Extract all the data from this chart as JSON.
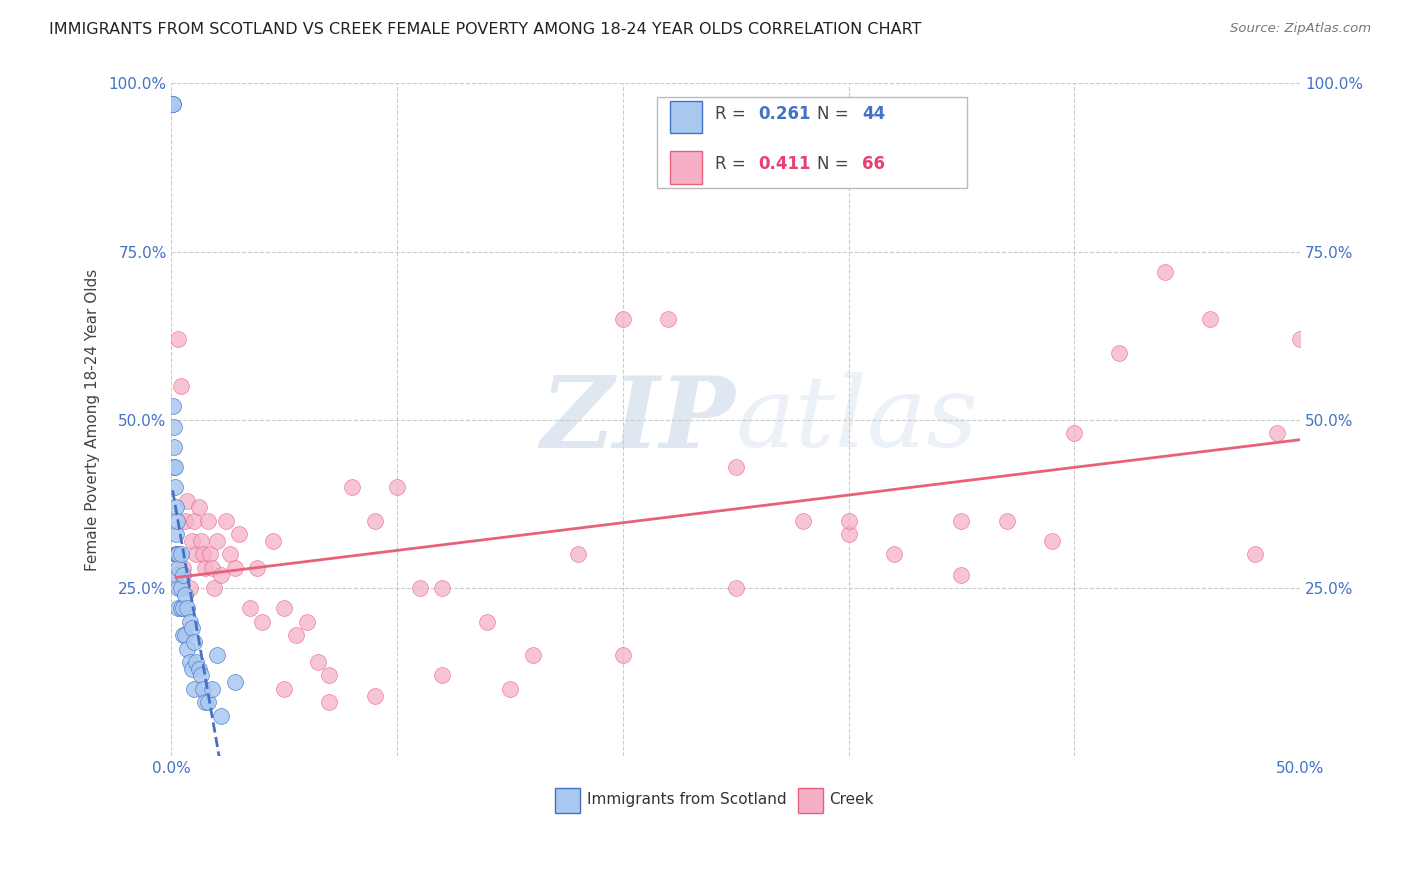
{
  "title": "IMMIGRANTS FROM SCOTLAND VS CREEK FEMALE POVERTY AMONG 18-24 YEAR OLDS CORRELATION CHART",
  "source": "Source: ZipAtlas.com",
  "ylabel": "Female Poverty Among 18-24 Year Olds",
  "xlim": [
    0.0,
    0.5
  ],
  "ylim": [
    0.0,
    1.0
  ],
  "legend1_label": "Immigrants from Scotland",
  "legend2_label": "Creek",
  "R1": "0.261",
  "N1": "44",
  "R2": "0.411",
  "N2": "66",
  "color_scotland": "#a8c8f0",
  "color_creek": "#f5b0c8",
  "color_scotland_line": "#4472c4",
  "color_creek_line": "#e8607a",
  "background_color": "#ffffff",
  "watermark_zip": "ZIP",
  "watermark_atlas": "atlas",
  "scotland_x": [
    0.0005,
    0.0005,
    0.0008,
    0.001,
    0.001,
    0.001,
    0.0015,
    0.0015,
    0.002,
    0.002,
    0.002,
    0.002,
    0.0025,
    0.0025,
    0.003,
    0.003,
    0.003,
    0.003,
    0.004,
    0.004,
    0.004,
    0.005,
    0.005,
    0.005,
    0.006,
    0.006,
    0.007,
    0.007,
    0.008,
    0.008,
    0.009,
    0.009,
    0.01,
    0.01,
    0.011,
    0.012,
    0.013,
    0.014,
    0.015,
    0.016,
    0.018,
    0.02,
    0.022,
    0.028
  ],
  "scotland_y": [
    0.97,
    0.97,
    0.52,
    0.49,
    0.46,
    0.43,
    0.43,
    0.4,
    0.37,
    0.33,
    0.3,
    0.27,
    0.35,
    0.3,
    0.3,
    0.28,
    0.25,
    0.22,
    0.3,
    0.25,
    0.22,
    0.27,
    0.22,
    0.18,
    0.24,
    0.18,
    0.22,
    0.16,
    0.2,
    0.14,
    0.19,
    0.13,
    0.17,
    0.1,
    0.14,
    0.13,
    0.12,
    0.1,
    0.08,
    0.08,
    0.1,
    0.15,
    0.06,
    0.11
  ],
  "creek_x": [
    0.002,
    0.003,
    0.004,
    0.005,
    0.006,
    0.007,
    0.008,
    0.009,
    0.01,
    0.011,
    0.012,
    0.013,
    0.014,
    0.015,
    0.016,
    0.017,
    0.018,
    0.019,
    0.02,
    0.022,
    0.024,
    0.026,
    0.028,
    0.03,
    0.035,
    0.038,
    0.04,
    0.045,
    0.05,
    0.055,
    0.06,
    0.065,
    0.07,
    0.08,
    0.09,
    0.1,
    0.11,
    0.12,
    0.14,
    0.16,
    0.18,
    0.2,
    0.22,
    0.25,
    0.28,
    0.3,
    0.32,
    0.35,
    0.37,
    0.39,
    0.4,
    0.42,
    0.44,
    0.46,
    0.48,
    0.49,
    0.5,
    0.35,
    0.3,
    0.25,
    0.2,
    0.15,
    0.12,
    0.09,
    0.07,
    0.05
  ],
  "creek_y": [
    0.3,
    0.62,
    0.55,
    0.28,
    0.35,
    0.38,
    0.25,
    0.32,
    0.35,
    0.3,
    0.37,
    0.32,
    0.3,
    0.28,
    0.35,
    0.3,
    0.28,
    0.25,
    0.32,
    0.27,
    0.35,
    0.3,
    0.28,
    0.33,
    0.22,
    0.28,
    0.2,
    0.32,
    0.22,
    0.18,
    0.2,
    0.14,
    0.12,
    0.4,
    0.35,
    0.4,
    0.25,
    0.25,
    0.2,
    0.15,
    0.3,
    0.65,
    0.65,
    0.43,
    0.35,
    0.33,
    0.3,
    0.35,
    0.35,
    0.32,
    0.48,
    0.6,
    0.72,
    0.65,
    0.3,
    0.48,
    0.62,
    0.27,
    0.35,
    0.25,
    0.15,
    0.1,
    0.12,
    0.09,
    0.08,
    0.1
  ]
}
